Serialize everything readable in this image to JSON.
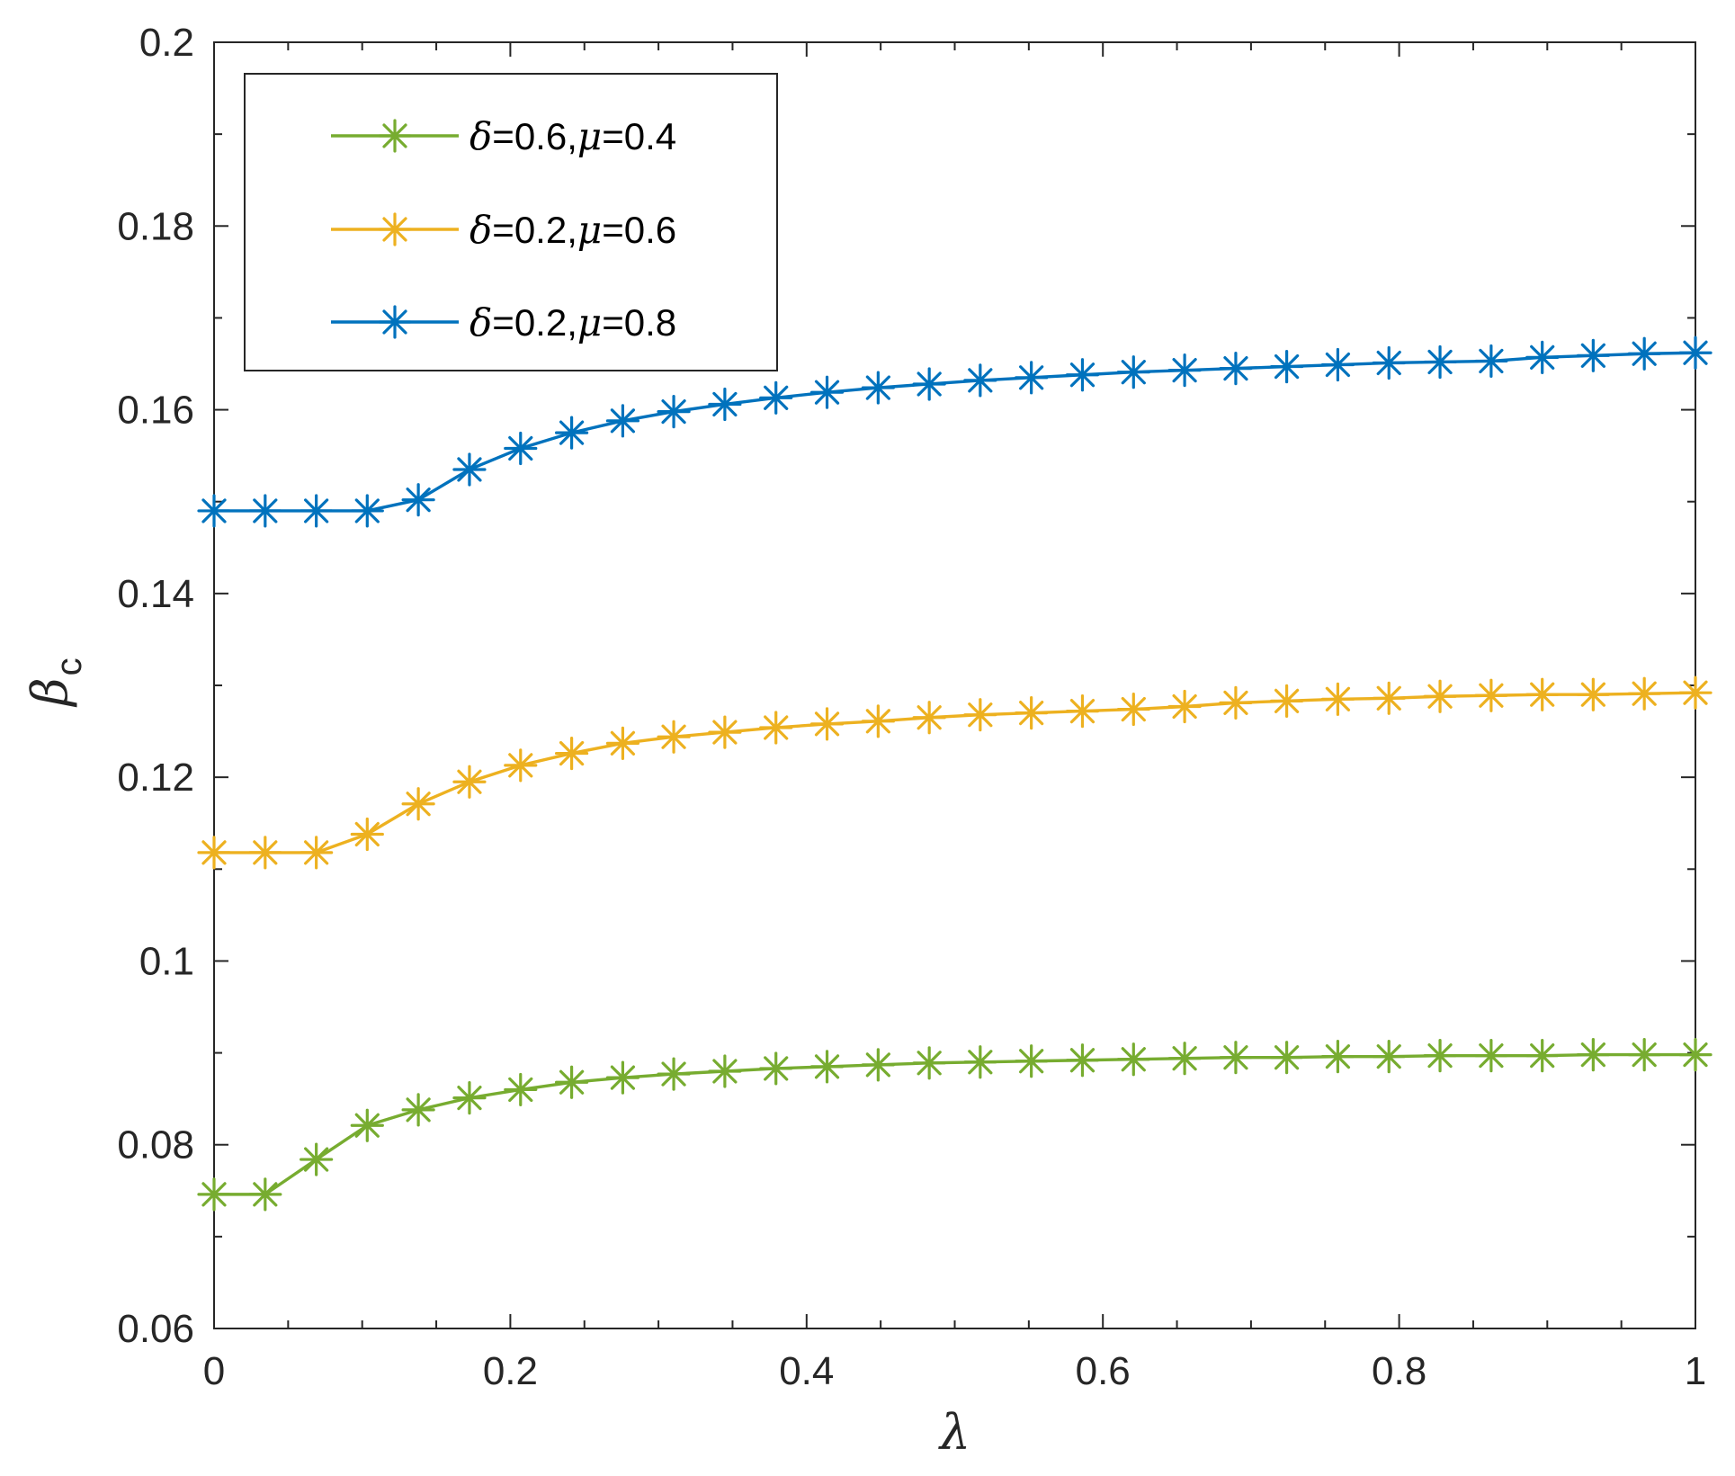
{
  "chart_data": {
    "type": "line",
    "title": "",
    "xlabel": "λ",
    "ylabel": {
      "symbol": "β",
      "subscript": "c"
    },
    "xlim": [
      0,
      1
    ],
    "ylim": [
      0.06,
      0.2
    ],
    "xticks": [
      0,
      0.2,
      0.4,
      0.6,
      0.8,
      1
    ],
    "xtick_labels": [
      "0",
      "0.2",
      "0.4",
      "0.6",
      "0.8",
      "1"
    ],
    "yticks": [
      0.06,
      0.08,
      0.1,
      0.12,
      0.14,
      0.16,
      0.18,
      0.2
    ],
    "ytick_labels": [
      "0.06",
      "0.08",
      "0.1",
      "0.12",
      "0.14",
      "0.16",
      "0.18",
      "0.2"
    ],
    "grid": false,
    "legend_position": "top-left",
    "marker": "asterisk",
    "x": [
      0,
      0.0345,
      0.069,
      0.1034,
      0.1379,
      0.1724,
      0.2069,
      0.2414,
      0.2759,
      0.3103,
      0.3448,
      0.3793,
      0.4138,
      0.4483,
      0.4828,
      0.5172,
      0.5517,
      0.5862,
      0.6207,
      0.6552,
      0.6897,
      0.7241,
      0.7586,
      0.7931,
      0.8276,
      0.8621,
      0.8966,
      0.931,
      0.9655,
      1
    ],
    "series": [
      {
        "name": "δ=0.6,μ=0.4",
        "label_parts": {
          "delta": "δ",
          "delta_value": "=0.6,",
          "mu": "μ",
          "mu_value": "=0.4"
        },
        "color": "#77AC30",
        "values": [
          0.0746,
          0.0746,
          0.0784,
          0.0821,
          0.0838,
          0.0851,
          0.086,
          0.0868,
          0.0873,
          0.0877,
          0.088,
          0.0883,
          0.0885,
          0.0887,
          0.0889,
          0.089,
          0.0891,
          0.0892,
          0.0893,
          0.0894,
          0.0895,
          0.0895,
          0.0896,
          0.0896,
          0.0897,
          0.0897,
          0.0897,
          0.0898,
          0.0898,
          0.0898
        ]
      },
      {
        "name": "δ=0.2,μ=0.6",
        "label_parts": {
          "delta": "δ",
          "delta_value": "=0.2,",
          "mu": "μ",
          "mu_value": "=0.6"
        },
        "color": "#EDB120",
        "values": [
          0.1118,
          0.1118,
          0.1118,
          0.1138,
          0.1171,
          0.1195,
          0.1213,
          0.1226,
          0.1237,
          0.1244,
          0.1249,
          0.1254,
          0.1258,
          0.1261,
          0.1265,
          0.1268,
          0.127,
          0.1272,
          0.1274,
          0.1277,
          0.1281,
          0.1283,
          0.1285,
          0.1286,
          0.1288,
          0.1289,
          0.129,
          0.129,
          0.1291,
          0.1292
        ]
      },
      {
        "name": "δ=0.2,μ=0.8",
        "label_parts": {
          "delta": "δ",
          "delta_value": "=0.2,",
          "mu": "μ",
          "mu_value": "=0.8"
        },
        "color": "#0072BD",
        "values": [
          0.149,
          0.149,
          0.149,
          0.149,
          0.1502,
          0.1535,
          0.1558,
          0.1575,
          0.1588,
          0.1598,
          0.1606,
          0.1613,
          0.1619,
          0.1624,
          0.1628,
          0.1632,
          0.1635,
          0.1638,
          0.1641,
          0.1643,
          0.1645,
          0.1647,
          0.1649,
          0.1651,
          0.1652,
          0.1653,
          0.1657,
          0.1659,
          0.1661,
          0.1662
        ]
      }
    ]
  }
}
